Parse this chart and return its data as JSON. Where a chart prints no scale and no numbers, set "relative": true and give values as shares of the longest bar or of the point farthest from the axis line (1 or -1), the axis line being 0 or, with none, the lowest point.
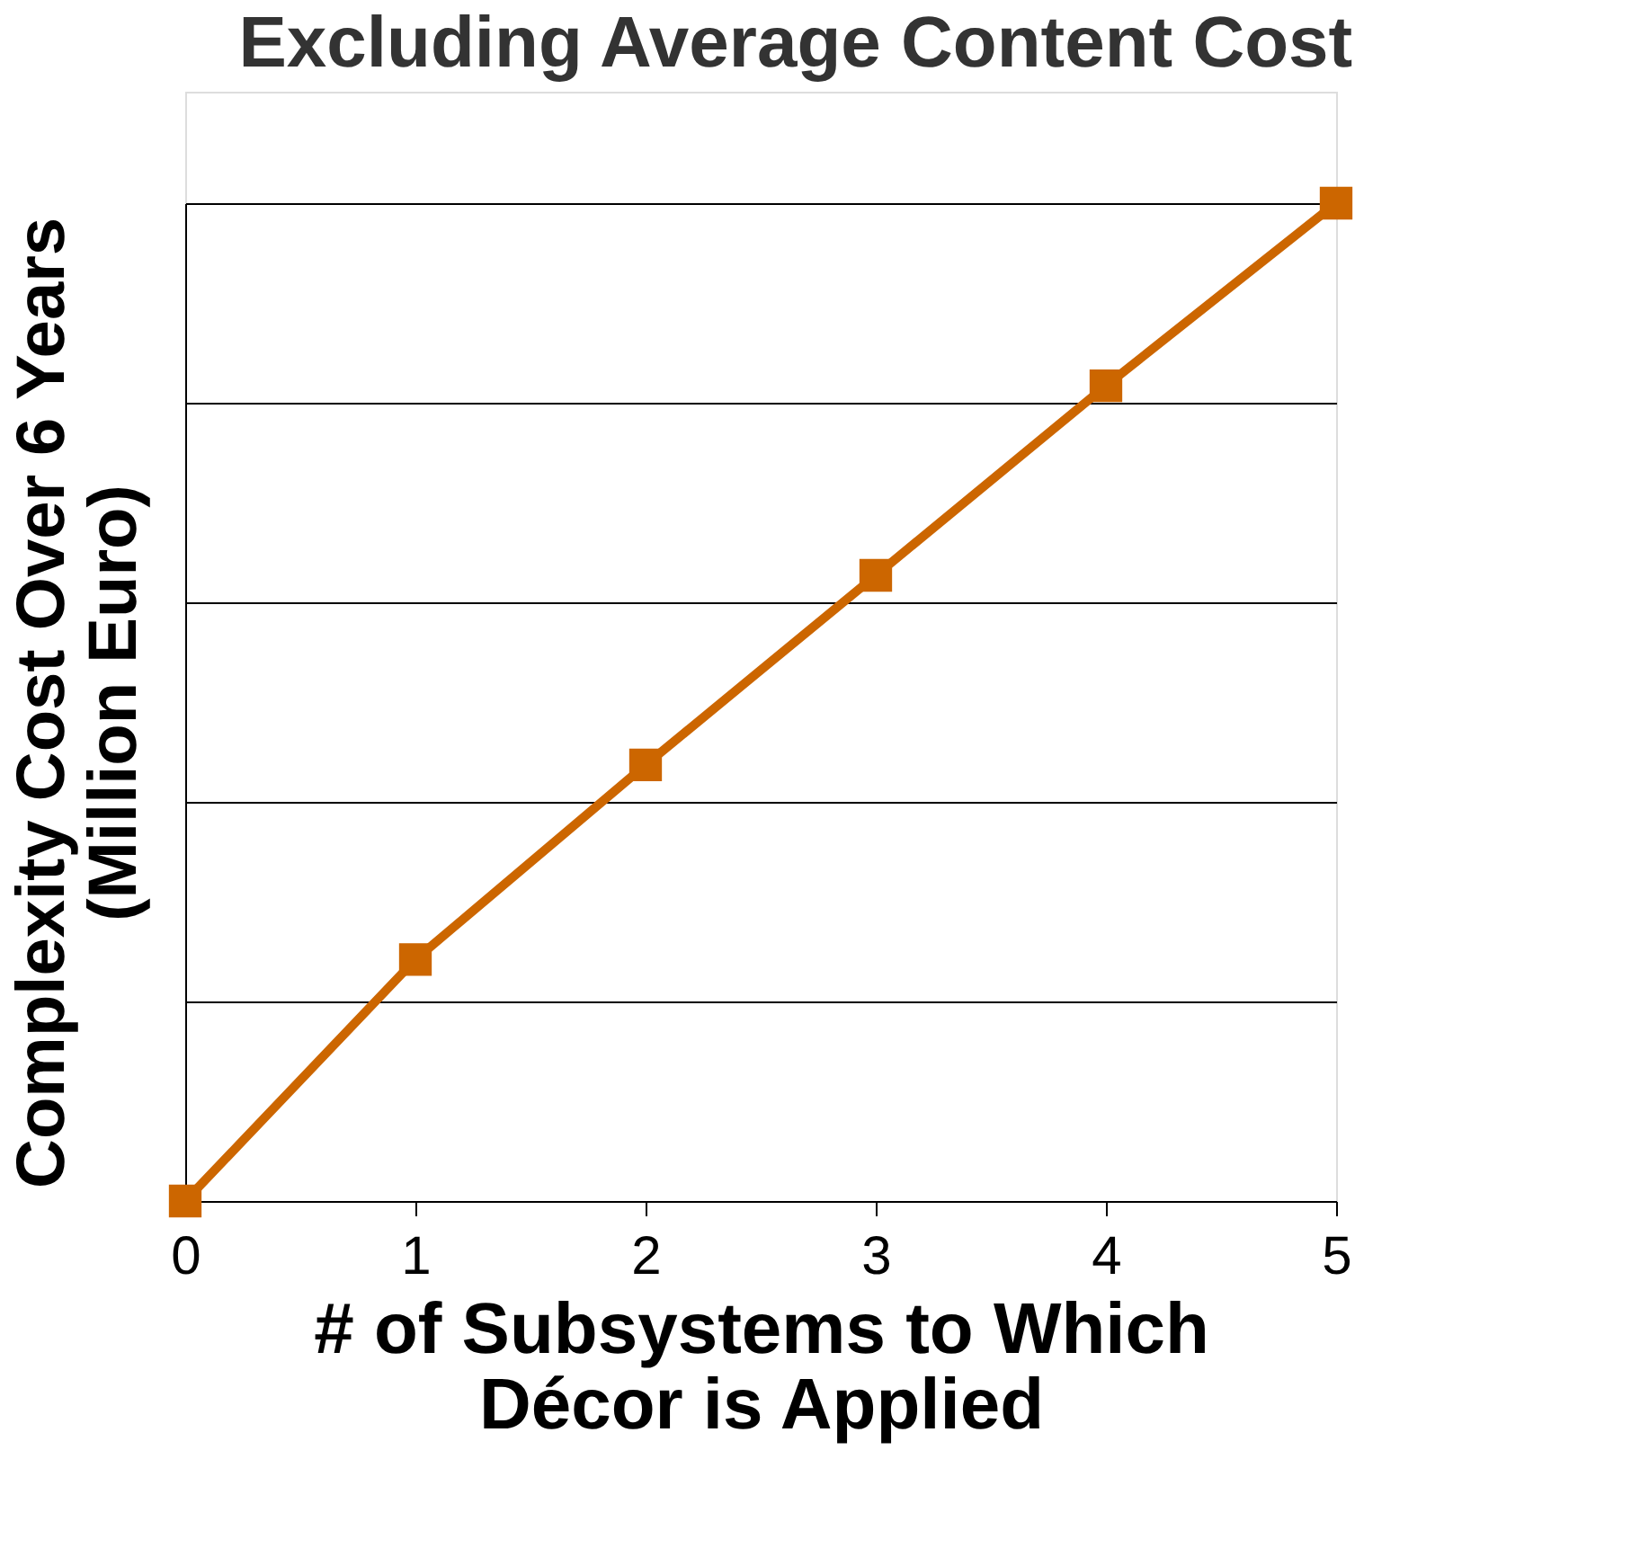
{
  "chart_data": {
    "type": "line",
    "title": "Excluding Average Content Cost",
    "xlabel": "# of Subsystems to Which\nDécor is Applied",
    "ylabel": "Complexity Cost Over 6 Years\n(Million Euro)",
    "x": [
      0,
      1,
      2,
      3,
      4,
      5
    ],
    "xlim": [
      0,
      5
    ],
    "xticks": [
      0,
      1,
      2,
      3,
      4,
      5
    ],
    "series": [
      {
        "color": "#cc6600",
        "values": [
          0,
          0.242,
          0.437,
          0.627,
          0.817,
          1
        ]
      }
    ],
    "relative": true,
    "grid": "y",
    "marker": "square",
    "line_style": "solid"
  }
}
